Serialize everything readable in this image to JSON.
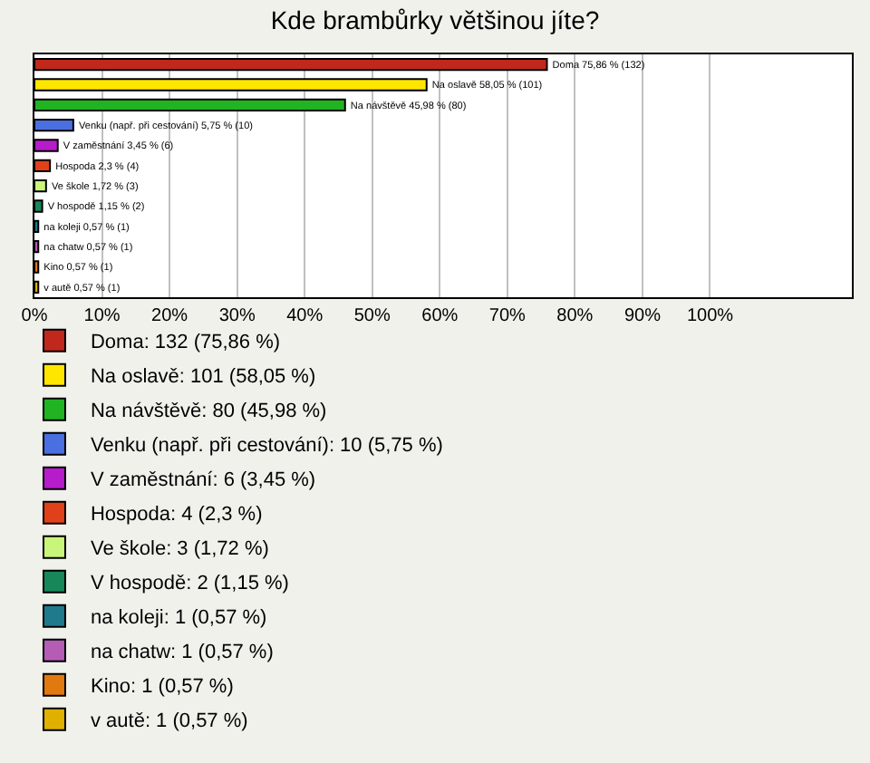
{
  "chart_data": {
    "type": "bar",
    "orientation": "horizontal",
    "stacked": true,
    "title": "Kde brambůrky většinou jíte?",
    "categories": [
      null,
      null,
      null,
      null,
      null,
      null,
      null,
      null,
      null,
      null,
      null,
      null
    ],
    "xlim": [
      0,
      121
    ],
    "xticks": [
      {
        "value": 0,
        "label": "0%"
      },
      {
        "value": 10,
        "label": "10%"
      },
      {
        "value": 20,
        "label": "20%"
      },
      {
        "value": 30,
        "label": "30%"
      },
      {
        "value": 40,
        "label": "40%"
      },
      {
        "value": 50,
        "label": "50%"
      },
      {
        "value": 60,
        "label": "60%"
      },
      {
        "value": 70,
        "label": "70%"
      },
      {
        "value": 80,
        "label": "80%"
      },
      {
        "value": 90,
        "label": "90%"
      },
      {
        "value": 100,
        "label": "100%"
      }
    ],
    "grid": "x",
    "legend": "bottom",
    "series": [
      {
        "name": "Doma: 132 (75,86 %)",
        "color": "#c0281c",
        "values": [
          75.86,
          null,
          null,
          null,
          null,
          null,
          null,
          null,
          null,
          null,
          null,
          null
        ],
        "value_labels": [
          "Doma 75,86 % (132)",
          null,
          null,
          null,
          null,
          null,
          null,
          null,
          null,
          null,
          null,
          null
        ]
      },
      {
        "name": "Na oslavě: 101 (58,05 %)",
        "color": "#ffe600",
        "values": [
          null,
          58.05,
          null,
          null,
          null,
          null,
          null,
          null,
          null,
          null,
          null,
          null
        ],
        "value_labels": [
          null,
          "Na oslavě 58,05 % (101)",
          null,
          null,
          null,
          null,
          null,
          null,
          null,
          null,
          null,
          null
        ]
      },
      {
        "name": "Na návštěvě: 80 (45,98 %)",
        "color": "#22b322",
        "values": [
          null,
          null,
          45.98,
          null,
          null,
          null,
          null,
          null,
          null,
          null,
          null,
          null
        ],
        "value_labels": [
          null,
          null,
          "Na návštěvě 45,98 % (80)",
          null,
          null,
          null,
          null,
          null,
          null,
          null,
          null,
          null
        ]
      },
      {
        "name": "Venku (např. při cestování): 10 (5,75 %)",
        "color": "#4a6fe0",
        "values": [
          null,
          null,
          null,
          5.75,
          null,
          null,
          null,
          null,
          null,
          null,
          null,
          null
        ],
        "value_labels": [
          null,
          null,
          null,
          "Venku (např. při cestování) 5,75 % (10)",
          null,
          null,
          null,
          null,
          null,
          null,
          null,
          null
        ]
      },
      {
        "name": "V zaměstnání: 6 (3,45 %)",
        "color": "#b61cc9",
        "values": [
          null,
          null,
          null,
          null,
          3.45,
          null,
          null,
          null,
          null,
          null,
          null,
          null
        ],
        "value_labels": [
          null,
          null,
          null,
          null,
          "V zaměstnání 3,45 % (6)",
          null,
          null,
          null,
          null,
          null,
          null,
          null
        ]
      },
      {
        "name": "Hospoda: 4 (2,3 %)",
        "color": "#e0401a",
        "values": [
          null,
          null,
          null,
          null,
          null,
          2.3,
          null,
          null,
          null,
          null,
          null,
          null
        ],
        "value_labels": [
          null,
          null,
          null,
          null,
          null,
          "Hospoda 2,3 % (4)",
          null,
          null,
          null,
          null,
          null,
          null
        ]
      },
      {
        "name": "Ve škole: 3 (1,72 %)",
        "color": "#c8f57a",
        "values": [
          null,
          null,
          null,
          null,
          null,
          null,
          1.72,
          null,
          null,
          null,
          null,
          null
        ],
        "value_labels": [
          null,
          null,
          null,
          null,
          null,
          null,
          "Ve škole 1,72 % (3)",
          null,
          null,
          null,
          null,
          null
        ]
      },
      {
        "name": "V hospodě: 2 (1,15 %)",
        "color": "#17875a",
        "values": [
          null,
          null,
          null,
          null,
          null,
          null,
          null,
          1.15,
          null,
          null,
          null,
          null
        ],
        "value_labels": [
          null,
          null,
          null,
          null,
          null,
          null,
          null,
          "V hospodě 1,15 % (2)",
          null,
          null,
          null,
          null
        ]
      },
      {
        "name": "na koleji: 1 (0,57 %)",
        "color": "#1f7a8c",
        "values": [
          null,
          null,
          null,
          null,
          null,
          null,
          null,
          null,
          0.57,
          null,
          null,
          null
        ],
        "value_labels": [
          null,
          null,
          null,
          null,
          null,
          null,
          null,
          null,
          "na koleji 0,57 % (1)",
          null,
          null,
          null
        ]
      },
      {
        "name": "na chatw: 1 (0,57 %)",
        "color": "#b55cb5",
        "values": [
          null,
          null,
          null,
          null,
          null,
          null,
          null,
          null,
          null,
          0.57,
          null,
          null
        ],
        "value_labels": [
          null,
          null,
          null,
          null,
          null,
          null,
          null,
          null,
          null,
          "na chatw 0,57 % (1)",
          null,
          null
        ]
      },
      {
        "name": "Kino: 1 (0,57 %)",
        "color": "#e07a10",
        "values": [
          null,
          null,
          null,
          null,
          null,
          null,
          null,
          null,
          null,
          null,
          0.57,
          null
        ],
        "value_labels": [
          null,
          null,
          null,
          null,
          null,
          null,
          null,
          null,
          null,
          null,
          "Kino 0,57 % (1)",
          null
        ]
      },
      {
        "name": "v autě: 1 (0,57 %)",
        "color": "#e0b000",
        "values": [
          null,
          null,
          null,
          null,
          null,
          null,
          null,
          null,
          null,
          null,
          null,
          0.57
        ],
        "value_labels": [
          null,
          null,
          null,
          null,
          null,
          null,
          null,
          null,
          null,
          null,
          null,
          "v autě 0,57 % (1)"
        ]
      }
    ]
  }
}
